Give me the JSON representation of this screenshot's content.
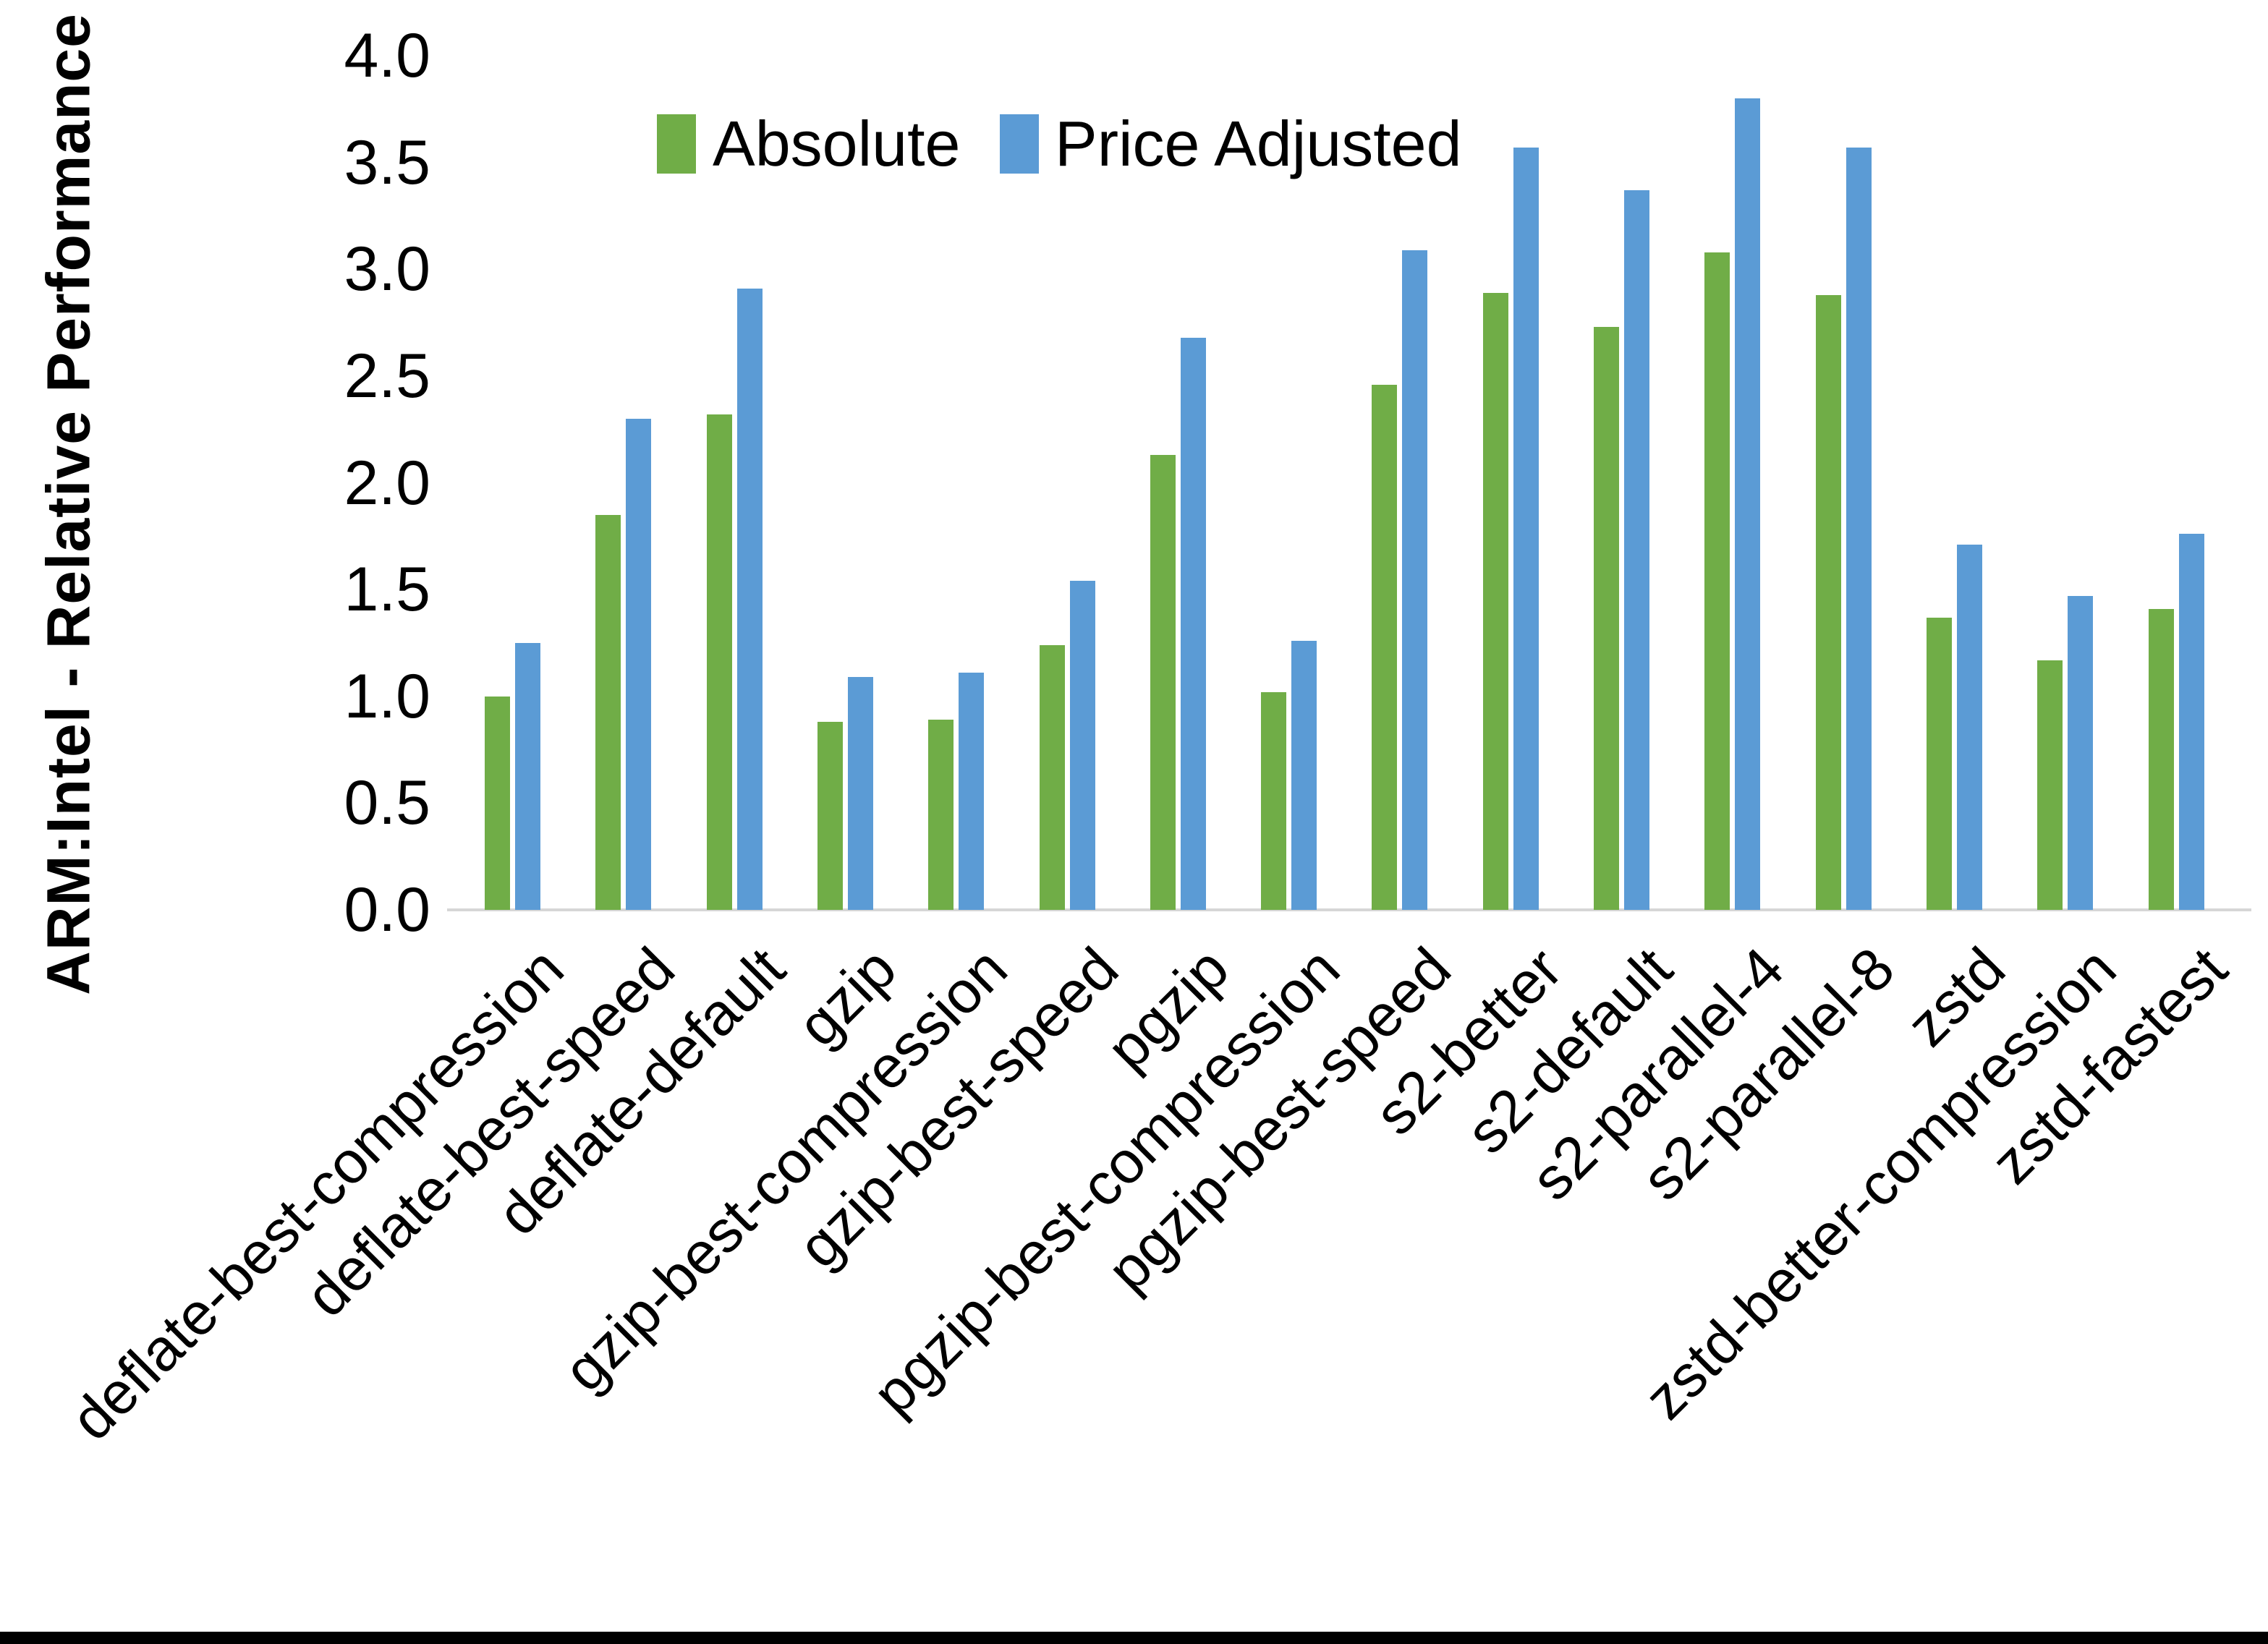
{
  "chart_data": {
    "type": "bar",
    "title": "",
    "xlabel": "",
    "ylabel": "ARM:Intel - Relative Performance",
    "ylim": [
      0.0,
      4.0
    ],
    "ytick_step": 0.5,
    "ytick_labels": [
      "0.0",
      "0.5",
      "1.0",
      "1.5",
      "2.0",
      "2.5",
      "3.0",
      "3.5",
      "4.0"
    ],
    "grid": false,
    "legend_position": "top-center",
    "axis_line_color": "#d6d6d6",
    "categories": [
      "deflate-best-compression",
      "deflate-best-speed",
      "deflate-default",
      "gzip",
      "gzip-best-compression",
      "gzip-best-speed",
      "pgzip",
      "pgzip-best-compression",
      "pgzip-best-speed",
      "s2-better",
      "s2-default",
      "s2-parallel-4",
      "s2-parallel-8",
      "zstd",
      "zstd-better-compression",
      "zstd-fastest"
    ],
    "series": [
      {
        "name": "Absolute",
        "color": "#70AD47",
        "values": [
          1.0,
          1.85,
          2.32,
          0.88,
          0.89,
          1.24,
          2.13,
          1.02,
          2.46,
          2.89,
          2.73,
          3.08,
          2.88,
          1.37,
          1.17,
          1.41
        ]
      },
      {
        "name": "Price Adjusted",
        "color": "#5B9BD5",
        "values": [
          1.25,
          2.3,
          2.91,
          1.09,
          1.11,
          1.54,
          2.68,
          1.26,
          3.09,
          3.57,
          3.37,
          3.8,
          3.57,
          1.71,
          1.47,
          1.76
        ]
      }
    ]
  }
}
